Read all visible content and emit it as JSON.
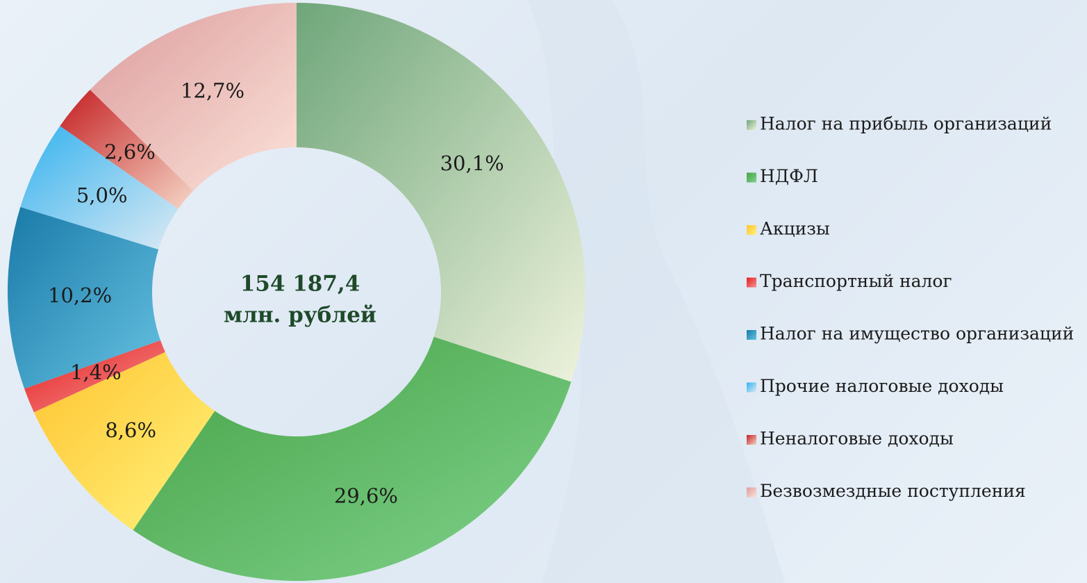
{
  "chart_data": {
    "type": "donut",
    "annotations": [
      "154 187,4",
      "млн. рублей"
    ],
    "categories": [
      "Налог на прибыль организаций",
      "НДФЛ",
      "Акцизы",
      "Транспортный налог",
      "Налог на имущество организаций",
      "Прочие налоговые доходы",
      "Неналоговые доходы",
      "Безвозмездные поступления"
    ],
    "values": [
      30.1,
      29.6,
      8.6,
      1.4,
      10.2,
      5.0,
      2.6,
      12.7
    ],
    "value_labels": [
      "30,1%",
      "29,6%",
      "8,6%",
      "1,4%",
      "10,2%",
      "5,0%",
      "2,6%",
      "12,7%"
    ],
    "colors": [
      [
        "#6fa67a",
        "#eef2dc"
      ],
      [
        "#46a246",
        "#80d28c"
      ],
      [
        "#ffc430",
        "#fff27c"
      ],
      [
        "#e2201f",
        "#f89090"
      ],
      [
        "#1a7aa8",
        "#66c2e2"
      ],
      [
        "#34b2ee",
        "#dbeaf4"
      ],
      [
        "#c41f22",
        "#f5d6c6"
      ],
      [
        "#dc9c9e",
        "#fbe2d8"
      ]
    ],
    "legend": "right"
  }
}
